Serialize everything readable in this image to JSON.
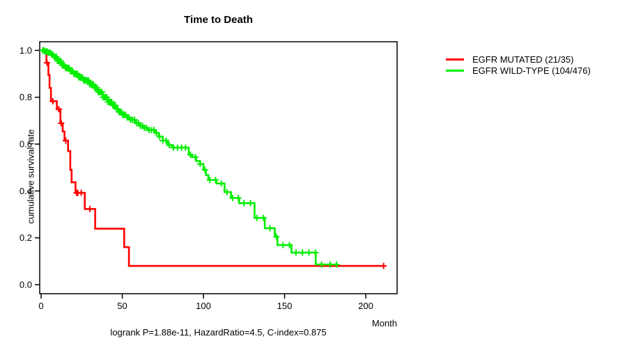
{
  "title": "Time to Death",
  "footer": "logrank P=1.88e-11, HazardRatio=4.5, C-index=0.875",
  "axes": {
    "x_label": "Month",
    "y_label": "cumulative survival rate",
    "x_tick_labels": [
      "0",
      "50",
      "100",
      "150",
      "200"
    ],
    "x_tick_values": [
      0,
      50,
      100,
      150,
      200
    ],
    "y_tick_labels": [
      "0.0",
      "0.2",
      "0.4",
      "0.6",
      "0.8",
      "1.0"
    ],
    "y_tick_values": [
      0.0,
      0.2,
      0.4,
      0.6,
      0.8,
      1.0
    ]
  },
  "legend": [
    {
      "label": "EGFR MUTATED (21/35)",
      "color": "#ff0000"
    },
    {
      "label": "EGFR WILD-TYPE (104/476)",
      "color": "#00ee00"
    }
  ],
  "chart_data": {
    "type": "line",
    "subtype": "kaplan-meier-step",
    "title": "Time to Death",
    "xlabel": "Month",
    "ylabel": "cumulative survival rate",
    "xlim": [
      0,
      220
    ],
    "ylim": [
      0,
      1.0
    ],
    "grid": false,
    "legend_position": "right-outside",
    "series": [
      {
        "name": "EGFR MUTATED (21/35)",
        "color": "#ff0000",
        "steps": [
          [
            0,
            1.0
          ],
          [
            3.3,
            0.947
          ],
          [
            4.5,
            0.895
          ],
          [
            5.2,
            0.84
          ],
          [
            6.1,
            0.783
          ],
          [
            9.7,
            0.749
          ],
          [
            11.9,
            0.689
          ],
          [
            13.3,
            0.654
          ],
          [
            14.4,
            0.615
          ],
          [
            16.6,
            0.57
          ],
          [
            18.0,
            0.49
          ],
          [
            18.8,
            0.437
          ],
          [
            21.2,
            0.392
          ],
          [
            26.9,
            0.323
          ],
          [
            33.3,
            0.239
          ],
          [
            51.2,
            0.16
          ],
          [
            54.1,
            0.08
          ]
        ],
        "end_month": 211,
        "censor_months": [
          3.6,
          7.2,
          10.9,
          12.4,
          15.2,
          21.9,
          22.6,
          24.7,
          30,
          211
        ]
      },
      {
        "name": "EGFR WILD-TYPE (104/476)",
        "color": "#00ee00",
        "steps": [
          [
            0,
            1.0
          ],
          [
            2,
            0.995
          ],
          [
            4,
            0.99
          ],
          [
            6,
            0.982
          ],
          [
            8,
            0.973
          ],
          [
            10,
            0.955
          ],
          [
            12.5,
            0.937
          ],
          [
            15,
            0.925
          ],
          [
            17.5,
            0.912
          ],
          [
            20,
            0.9
          ],
          [
            23,
            0.885
          ],
          [
            26,
            0.872
          ],
          [
            30,
            0.855
          ],
          [
            32.5,
            0.84
          ],
          [
            35,
            0.822
          ],
          [
            38,
            0.8
          ],
          [
            41,
            0.78
          ],
          [
            44,
            0.765
          ],
          [
            46,
            0.75
          ],
          [
            48,
            0.737
          ],
          [
            50,
            0.725
          ],
          [
            52.5,
            0.714
          ],
          [
            55,
            0.704
          ],
          [
            58,
            0.69
          ],
          [
            60.5,
            0.678
          ],
          [
            63,
            0.669
          ],
          [
            66,
            0.66
          ],
          [
            70,
            0.648
          ],
          [
            72.5,
            0.632
          ],
          [
            75,
            0.615
          ],
          [
            78,
            0.596
          ],
          [
            81,
            0.585
          ],
          [
            91,
            0.555
          ],
          [
            93,
            0.545
          ],
          [
            95.5,
            0.528
          ],
          [
            98,
            0.515
          ],
          [
            100,
            0.49
          ],
          [
            101.5,
            0.468
          ],
          [
            103,
            0.447
          ],
          [
            108,
            0.432
          ],
          [
            113,
            0.395
          ],
          [
            117,
            0.37
          ],
          [
            122,
            0.348
          ],
          [
            131.5,
            0.285
          ],
          [
            137.8,
            0.241
          ],
          [
            144,
            0.205
          ],
          [
            145.6,
            0.169
          ],
          [
            154.2,
            0.137
          ],
          [
            169.2,
            0.086
          ]
        ],
        "end_month": 182,
        "censor_months": [
          1,
          1.7,
          2.4,
          3.1,
          3.8,
          4.5,
          5.2,
          5.9,
          6.6,
          7.3,
          8,
          8.7,
          9.4,
          10.1,
          10.8,
          11.5,
          12.2,
          12.9,
          13.6,
          14.3,
          15,
          15.8,
          16.5,
          17.2,
          18,
          18.7,
          19.4,
          20.2,
          21,
          21.7,
          22.4,
          23.2,
          24,
          24.7,
          25.4,
          26.2,
          27,
          27.7,
          28.4,
          29.2,
          30,
          30.7,
          31.5,
          32.2,
          33,
          33.7,
          34.5,
          35.2,
          36,
          36.7,
          37.5,
          38.2,
          39,
          39.7,
          40.5,
          41.2,
          42,
          42.7,
          43.5,
          44.2,
          45,
          45.7,
          46.5,
          47.2,
          48,
          48.7,
          49.5,
          50.2,
          51,
          52,
          53,
          54,
          55,
          56.2,
          57.5,
          58.7,
          60,
          61.2,
          62.5,
          63.7,
          65,
          66.5,
          68,
          69.5,
          71,
          73,
          75,
          77,
          79,
          81.5,
          84,
          86.5,
          89,
          92,
          95,
          98,
          101,
          104,
          107.5,
          111,
          114.5,
          118,
          121.5,
          125,
          129,
          133,
          137,
          141,
          145,
          149,
          153,
          157,
          161,
          165,
          169,
          172.8,
          178,
          182
        ]
      }
    ]
  }
}
